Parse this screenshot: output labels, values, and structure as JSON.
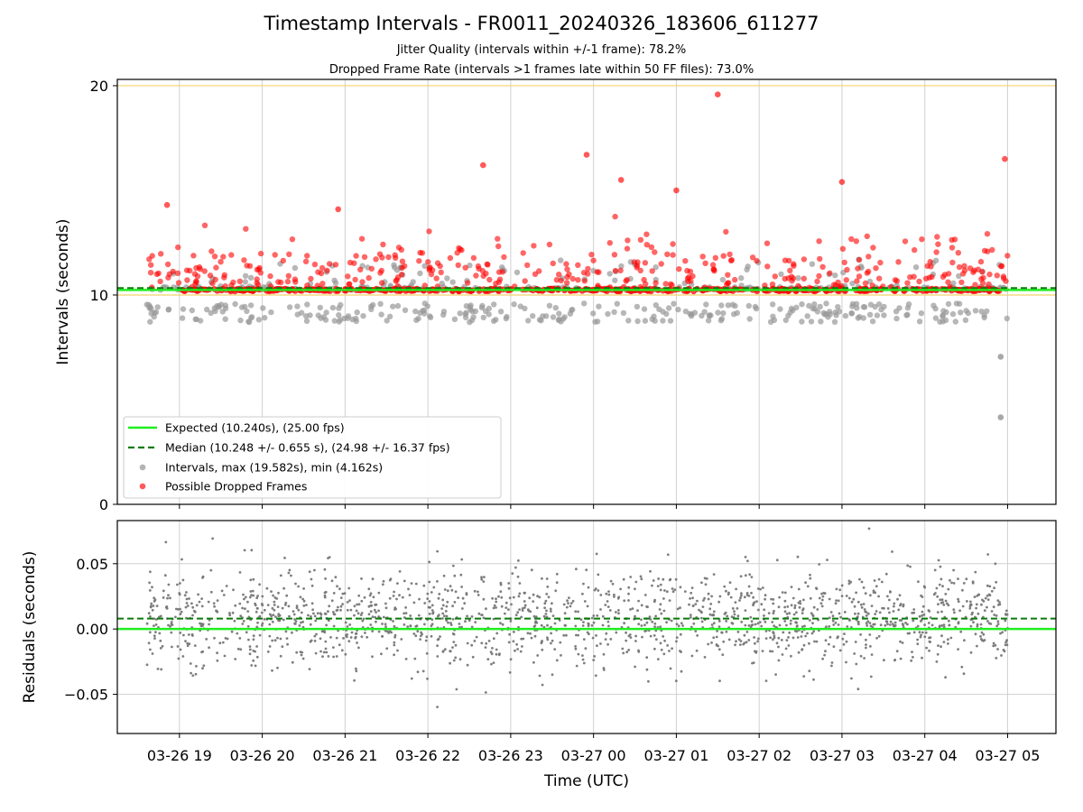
{
  "title": "Timestamp Intervals - FR0011_20240326_183606_611277",
  "subtitle_1": "Jitter Quality (intervals within +/-1 frame): 78.2%",
  "subtitle_2": "Dropped Frame Rate (intervals >1 frames late within 50 FF files): 73.0%",
  "colors": {
    "expected": "#1fee1f",
    "median": "#0a7a0a",
    "intervals": "#999999",
    "dropped": "#ff0000",
    "threshold": "#f2d36a",
    "residuals": "#777777",
    "grid": "#d0d0d0"
  },
  "chart_data": [
    {
      "type": "scatter",
      "panel": "top",
      "ylabel": "Intervals (seconds)",
      "ylim": [
        0,
        20.3
      ],
      "yticks": [
        "0",
        "10",
        "20"
      ],
      "threshold_lines": [
        10.0,
        20.0
      ],
      "expected": 10.24,
      "median": 10.248,
      "grid": "x only",
      "legend_position": "lower-left",
      "legend": [
        {
          "label": "Expected (10.240s), (25.00 fps)",
          "style": "solid-line"
        },
        {
          "label": "Median (10.248 +/- 0.655 s), (24.98 +/- 16.37 fps)",
          "style": "dashed-line"
        },
        {
          "label": "Intervals, max (19.582s), min (4.162s)",
          "style": "gray-dot"
        },
        {
          "label": "Possible Dropped Frames",
          "style": "red-dot"
        }
      ],
      "notable_points": [
        {
          "x": "03-27 01:30",
          "y": 19.58
        },
        {
          "x": "03-27 04:55",
          "y": 4.16
        },
        {
          "x": "03-27 04:55",
          "y": 7.05
        },
        {
          "x": "03-26 18:51",
          "y": 14.3
        },
        {
          "x": "03-26 20:55",
          "y": 14.1
        },
        {
          "x": "03-26 22:40",
          "y": 16.2
        },
        {
          "x": "03-26 23:55",
          "y": 16.7
        },
        {
          "x": "03-27 00:20",
          "y": 15.5
        },
        {
          "x": "03-27 01:00",
          "y": 15.0
        },
        {
          "x": "03-27 03:00",
          "y": 15.4
        },
        {
          "x": "03-27 04:58",
          "y": 16.5
        }
      ],
      "bulk_distribution": "Intervals cluster at ~10.24 s; dropped-frame candidates mostly 10.3–13 s",
      "notes": "Dense point cloud approximated"
    },
    {
      "type": "scatter",
      "panel": "bottom",
      "xlabel": "Time (UTC)",
      "ylabel": "Residuals (seconds)",
      "ylim": [
        -0.08,
        0.083
      ],
      "yticks": [
        "0.05",
        "0.00",
        "−0.05"
      ],
      "zero_line": 0.0,
      "median_line": 0.008,
      "grid": "both",
      "x_range": [
        "03-26 18:36",
        "03-27 05:00"
      ],
      "xticks": [
        "03-26 19",
        "03-26 20",
        "03-26 21",
        "03-26 22",
        "03-26 23",
        "03-27 00",
        "03-27 01",
        "03-27 02",
        "03-27 03",
        "03-27 04",
        "03-27 05"
      ],
      "bulk_distribution": "Residuals mostly between -0.04 and +0.05 s, centered near +0.008 s",
      "notes": "Dense point cloud approximated"
    }
  ]
}
